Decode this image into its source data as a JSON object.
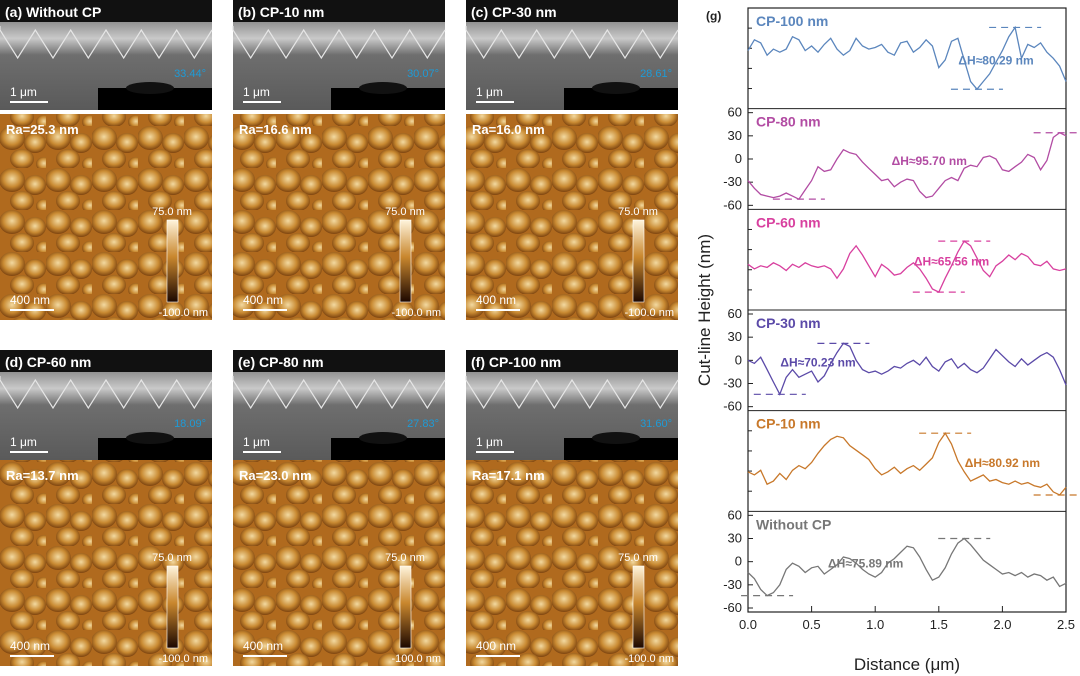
{
  "panels": [
    {
      "label": "(a) Without CP",
      "angle": "33.44°",
      "ra": "Ra=25.3 nm"
    },
    {
      "label": "(b) CP-10 nm",
      "angle": "30.07°",
      "ra": "Ra=16.6 nm"
    },
    {
      "label": "(c) CP-30 nm",
      "angle": "28.61°",
      "ra": "Ra=16.0 nm"
    },
    {
      "label": "(d) CP-60 nm",
      "angle": "18.09°",
      "ra": "Ra=13.7 nm"
    },
    {
      "label": "(e) CP-80 nm",
      "angle": "27.83°",
      "ra": "Ra=23.0 nm"
    },
    {
      "label": "(f) CP-100 nm",
      "angle": "31.60°",
      "ra": "Ra=17.1 nm"
    }
  ],
  "sem_scale": "1 μm",
  "afm_scale": "400 nm",
  "colorbar": {
    "max": "75.0 nm",
    "min": "-100.0 nm"
  },
  "colors": {
    "angle": "#1e9bd7",
    "cp100": "#5b86bd",
    "cp80": "#b24ca3",
    "cp60": "#d8409f",
    "cp30": "#5b4aa8",
    "cp10": "#c8782a",
    "none": "#777777"
  },
  "chart_data": {
    "type": "line",
    "title": "(g)",
    "xlabel": "Distance (μm)",
    "ylabel": "Cut-line Height (nm)",
    "xlim": [
      0,
      2.5
    ],
    "ylim": [
      -60,
      60
    ],
    "xticks": [
      "0.0",
      "0.5",
      "1.0",
      "1.5",
      "2.0",
      "2.5"
    ],
    "yticks": [
      "60",
      "30",
      "0",
      "-30",
      "-60"
    ],
    "series": [
      {
        "name": "CP-100 nm",
        "delta": "ΔH≈80.29 nm",
        "x": [
          0,
          0.05,
          0.1,
          0.15,
          0.2,
          0.25,
          0.3,
          0.35,
          0.4,
          0.45,
          0.5,
          0.55,
          0.6,
          0.65,
          0.7,
          0.75,
          0.8,
          0.85,
          0.9,
          0.95,
          1.0,
          1.05,
          1.1,
          1.15,
          1.2,
          1.25,
          1.3,
          1.35,
          1.4,
          1.45,
          1.5,
          1.55,
          1.6,
          1.65,
          1.7,
          1.75,
          1.8,
          1.85,
          1.9,
          1.95,
          2.0,
          2.05,
          2.1,
          2.15,
          2.2,
          2.25,
          2.3,
          2.35,
          2.4,
          2.45,
          2.5
        ],
        "y": [
          10,
          24,
          20,
          4,
          12,
          8,
          12,
          28,
          24,
          10,
          16,
          8,
          18,
          26,
          12,
          4,
          10,
          26,
          16,
          12,
          14,
          18,
          8,
          4,
          20,
          22,
          8,
          14,
          24,
          16,
          -12,
          -2,
          22,
          26,
          -2,
          -30,
          -40,
          -30,
          -20,
          -5,
          10,
          28,
          40,
          0,
          18,
          14,
          20,
          8,
          0,
          -10,
          -30
        ]
      },
      {
        "name": "CP-80 nm",
        "delta": "ΔH≈95.70 nm",
        "x": [
          0,
          0.05,
          0.1,
          0.15,
          0.2,
          0.25,
          0.3,
          0.35,
          0.4,
          0.45,
          0.5,
          0.55,
          0.6,
          0.65,
          0.7,
          0.75,
          0.8,
          0.85,
          0.9,
          0.95,
          1.0,
          1.05,
          1.1,
          1.15,
          1.2,
          1.25,
          1.3,
          1.35,
          1.4,
          1.45,
          1.5,
          1.55,
          1.6,
          1.65,
          1.7,
          1.75,
          1.8,
          1.85,
          1.9,
          1.95,
          2.0,
          2.05,
          2.1,
          2.15,
          2.2,
          2.25,
          2.3,
          2.35,
          2.4,
          2.45,
          2.5
        ],
        "y": [
          -28,
          -38,
          -46,
          -48,
          -50,
          -48,
          -44,
          -48,
          -52,
          -40,
          -28,
          -10,
          -16,
          -14,
          0,
          12,
          8,
          6,
          -4,
          -12,
          -20,
          -28,
          -26,
          -36,
          -30,
          -26,
          -28,
          -42,
          -50,
          -48,
          -38,
          -28,
          -24,
          -28,
          -12,
          -8,
          -10,
          2,
          4,
          0,
          -14,
          -16,
          -10,
          -4,
          6,
          2,
          -14,
          -2,
          28,
          34,
          30
        ]
      },
      {
        "name": "CP-60 nm",
        "delta": "ΔH≈65.56 nm",
        "x": [
          0,
          0.05,
          0.1,
          0.15,
          0.2,
          0.25,
          0.3,
          0.35,
          0.4,
          0.45,
          0.5,
          0.55,
          0.6,
          0.65,
          0.7,
          0.75,
          0.8,
          0.85,
          0.9,
          0.95,
          1.0,
          1.05,
          1.1,
          1.15,
          1.2,
          1.25,
          1.3,
          1.35,
          1.4,
          1.45,
          1.5,
          1.55,
          1.6,
          1.65,
          1.7,
          1.75,
          1.8,
          1.85,
          1.9,
          1.95,
          2.0,
          2.05,
          2.1,
          2.15,
          2.2,
          2.25,
          2.3,
          2.35,
          2.4,
          2.45,
          2.5
        ],
        "y": [
          -6,
          -12,
          -8,
          -10,
          -4,
          -8,
          -14,
          -6,
          -10,
          -4,
          -8,
          -10,
          -8,
          -12,
          -24,
          -12,
          8,
          18,
          6,
          -8,
          -22,
          -6,
          -12,
          -20,
          -18,
          -10,
          -4,
          -12,
          -24,
          -38,
          -42,
          -24,
          -8,
          10,
          24,
          18,
          2,
          -14,
          -22,
          -8,
          -2,
          6,
          0,
          8,
          4,
          -6,
          -8,
          -2,
          -12,
          -14,
          -12
        ]
      },
      {
        "name": "CP-30 nm",
        "delta": "ΔH≈70.23 nm",
        "x": [
          0,
          0.05,
          0.1,
          0.15,
          0.2,
          0.25,
          0.3,
          0.35,
          0.4,
          0.45,
          0.5,
          0.55,
          0.6,
          0.65,
          0.7,
          0.75,
          0.8,
          0.85,
          0.9,
          0.95,
          1.0,
          1.05,
          1.1,
          1.15,
          1.2,
          1.25,
          1.3,
          1.35,
          1.4,
          1.45,
          1.5,
          1.55,
          1.6,
          1.65,
          1.7,
          1.75,
          1.8,
          1.85,
          1.9,
          1.95,
          2.0,
          2.05,
          2.1,
          2.15,
          2.2,
          2.25,
          2.3,
          2.35,
          2.4,
          2.45,
          2.5
        ],
        "y": [
          0,
          -4,
          4,
          -12,
          -28,
          -44,
          -22,
          -12,
          -22,
          -18,
          -14,
          -28,
          -20,
          -4,
          10,
          22,
          18,
          0,
          -12,
          -16,
          -14,
          -18,
          -14,
          -8,
          -10,
          -4,
          0,
          -6,
          4,
          -8,
          -14,
          -2,
          2,
          -10,
          -4,
          -12,
          -16,
          -10,
          2,
          14,
          6,
          -2,
          -8,
          2,
          -6,
          0,
          6,
          10,
          4,
          -12,
          -32
        ]
      },
      {
        "name": "CP-10 nm",
        "delta": "ΔH≈80.92 nm",
        "x": [
          0,
          0.05,
          0.1,
          0.15,
          0.2,
          0.25,
          0.3,
          0.35,
          0.4,
          0.45,
          0.5,
          0.55,
          0.6,
          0.65,
          0.7,
          0.75,
          0.8,
          0.85,
          0.9,
          0.95,
          1.0,
          1.05,
          1.1,
          1.15,
          1.2,
          1.25,
          1.3,
          1.35,
          1.4,
          1.45,
          1.5,
          1.55,
          1.6,
          1.65,
          1.7,
          1.75,
          1.8,
          1.85,
          1.9,
          1.95,
          2.0,
          2.05,
          2.1,
          2.15,
          2.2,
          2.25,
          2.3,
          2.35,
          2.4,
          2.45,
          2.5
        ],
        "y": [
          -14,
          -18,
          -12,
          -30,
          -26,
          -16,
          -24,
          -12,
          -6,
          -10,
          -2,
          10,
          20,
          28,
          32,
          30,
          20,
          14,
          8,
          2,
          -10,
          -18,
          -14,
          -8,
          -16,
          -10,
          -6,
          -12,
          -4,
          4,
          24,
          36,
          22,
          0,
          -14,
          -26,
          -22,
          -18,
          -26,
          -24,
          -28,
          -30,
          -26,
          -30,
          -28,
          -32,
          -34,
          -30,
          -40,
          -44,
          -34
        ]
      },
      {
        "name": "Without CP",
        "delta": "ΔH≈75.89 nm",
        "x": [
          0,
          0.05,
          0.1,
          0.15,
          0.2,
          0.25,
          0.3,
          0.35,
          0.4,
          0.45,
          0.5,
          0.55,
          0.6,
          0.65,
          0.7,
          0.75,
          0.8,
          0.85,
          0.9,
          0.95,
          1.0,
          1.05,
          1.1,
          1.15,
          1.2,
          1.25,
          1.3,
          1.35,
          1.4,
          1.45,
          1.5,
          1.55,
          1.6,
          1.65,
          1.7,
          1.75,
          1.8,
          1.85,
          1.9,
          1.95,
          2.0,
          2.05,
          2.1,
          2.15,
          2.2,
          2.25,
          2.3,
          2.35,
          2.4,
          2.45,
          2.5
        ],
        "y": [
          -14,
          -22,
          -36,
          -44,
          -40,
          -30,
          -10,
          -2,
          -6,
          -14,
          -8,
          -6,
          -16,
          -10,
          -4,
          6,
          4,
          -2,
          -10,
          -16,
          -20,
          -14,
          -2,
          4,
          12,
          20,
          18,
          6,
          -10,
          -24,
          -20,
          -8,
          10,
          24,
          30,
          22,
          12,
          2,
          -4,
          -10,
          -16,
          -14,
          -18,
          -14,
          -20,
          -16,
          -18,
          -24,
          -20,
          -32,
          -28
        ]
      }
    ]
  }
}
